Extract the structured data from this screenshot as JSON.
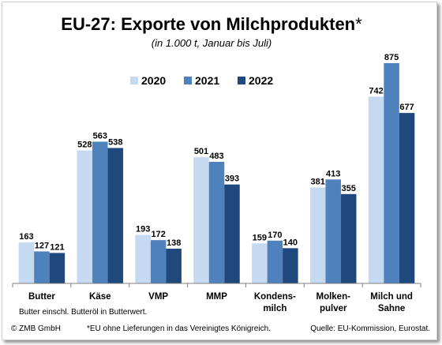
{
  "header": {
    "title": "EU-27: Exporte von Milchprodukten",
    "title_mark": "*",
    "subtitle": "(in 1.000 t, Januar bis Juli)"
  },
  "chart_data": {
    "type": "bar",
    "categories": [
      [
        "Butter"
      ],
      [
        "Käse"
      ],
      [
        "VMP"
      ],
      [
        "MMP"
      ],
      [
        "Kondens-",
        "milch"
      ],
      [
        "Molken-",
        "pulver"
      ],
      [
        "Milch und",
        "Sahne"
      ]
    ],
    "series": [
      {
        "name": "2020",
        "color": "#c5d9f1",
        "values": [
          163,
          528,
          193,
          501,
          159,
          381,
          742
        ]
      },
      {
        "name": "2021",
        "color": "#4f81bd",
        "values": [
          127,
          563,
          172,
          483,
          170,
          413,
          875
        ]
      },
      {
        "name": "2022",
        "color": "#1f497d",
        "values": [
          121,
          538,
          138,
          393,
          140,
          355,
          677
        ]
      }
    ],
    "ylim": [
      0,
      900
    ],
    "grid": false,
    "legend": "top-center"
  },
  "notes": {
    "butter_note": "Butter einschl. Butteröl in Butterwert."
  },
  "footer": {
    "copyright": "© ZMB GmbH",
    "footnote": "*EU ohne Lieferungen in das Vereinigtes Königreich.",
    "source": "Quelle: EU-Kommission, Eurostat."
  }
}
